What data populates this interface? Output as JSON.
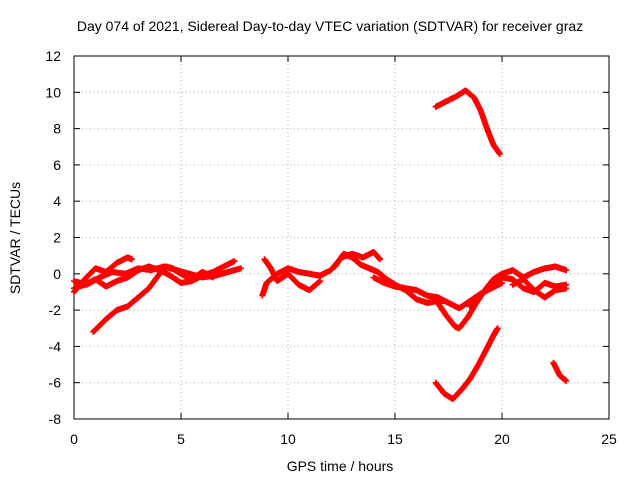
{
  "chart_data": {
    "type": "scatter",
    "title": "Day 074 of 2021, Sidereal Day-to-day VTEC variation (SDTVAR) for receiver graz",
    "xlabel": "GPS time / hours",
    "ylabel": "SDTVAR / TECUs",
    "xlim": [
      0,
      25
    ],
    "ylim": [
      -8,
      12
    ],
    "xticks": [
      0,
      5,
      10,
      15,
      20,
      25
    ],
    "yticks": [
      -8,
      -6,
      -4,
      -2,
      0,
      2,
      4,
      6,
      8,
      10,
      12
    ],
    "grid": true,
    "marker": "+",
    "series_color": "#ff0000",
    "series": [
      {
        "name": "trace-1",
        "points": [
          [
            0.0,
            -1.0
          ],
          [
            0.5,
            -0.3
          ],
          [
            1.0,
            0.3
          ],
          [
            1.5,
            0.1
          ],
          [
            2.0,
            0.6
          ],
          [
            2.5,
            0.9
          ],
          [
            2.7,
            0.8
          ]
        ]
      },
      {
        "name": "trace-2",
        "points": [
          [
            0.0,
            -0.8
          ],
          [
            0.5,
            -0.6
          ],
          [
            1.0,
            -0.3
          ],
          [
            1.5,
            -0.7
          ],
          [
            2.0,
            -0.4
          ],
          [
            2.5,
            -0.2
          ],
          [
            3.0,
            0.2
          ],
          [
            3.5,
            0.4
          ],
          [
            4.0,
            0.2
          ],
          [
            4.5,
            -0.1
          ],
          [
            5.0,
            -0.5
          ],
          [
            5.5,
            -0.4
          ],
          [
            6.0,
            -0.1
          ],
          [
            6.5,
            0.1
          ],
          [
            7.0,
            0.4
          ],
          [
            7.5,
            0.7
          ]
        ]
      },
      {
        "name": "trace-3",
        "points": [
          [
            0.9,
            -3.2
          ],
          [
            1.5,
            -2.5
          ],
          [
            2.0,
            -2.0
          ],
          [
            2.5,
            -1.8
          ],
          [
            3.0,
            -1.3
          ],
          [
            3.5,
            -0.8
          ],
          [
            4.0,
            0.0
          ],
          [
            4.3,
            0.4
          ],
          [
            4.6,
            0.3
          ],
          [
            5.0,
            0.0
          ],
          [
            5.5,
            -0.3
          ],
          [
            6.0,
            0.1
          ],
          [
            6.5,
            -0.2
          ]
        ]
      },
      {
        "name": "trace-4",
        "points": [
          [
            0.0,
            -0.4
          ],
          [
            0.6,
            -0.6
          ],
          [
            1.2,
            -0.2
          ],
          [
            1.8,
            0.1
          ],
          [
            2.4,
            0.0
          ],
          [
            3.0,
            0.3
          ],
          [
            3.6,
            0.2
          ],
          [
            4.2,
            0.4
          ],
          [
            4.8,
            0.2
          ],
          [
            5.4,
            0.0
          ],
          [
            6.0,
            -0.2
          ],
          [
            6.6,
            -0.1
          ],
          [
            7.2,
            0.1
          ],
          [
            7.8,
            0.3
          ]
        ]
      },
      {
        "name": "trace-5",
        "points": [
          [
            8.9,
            0.8
          ],
          [
            9.2,
            0.3
          ],
          [
            9.5,
            -0.4
          ],
          [
            10.0,
            0.0
          ],
          [
            10.5,
            -0.6
          ],
          [
            11.0,
            -0.9
          ],
          [
            11.5,
            -0.4
          ]
        ]
      },
      {
        "name": "trace-6",
        "points": [
          [
            8.8,
            -1.2
          ],
          [
            9.0,
            -0.5
          ],
          [
            9.5,
            0.0
          ],
          [
            10.0,
            0.3
          ],
          [
            10.5,
            0.1
          ],
          [
            11.0,
            0.0
          ],
          [
            11.5,
            -0.1
          ],
          [
            12.0,
            0.2
          ],
          [
            12.5,
            0.9
          ],
          [
            13.0,
            1.1
          ],
          [
            13.5,
            0.9
          ],
          [
            14.0,
            1.2
          ],
          [
            14.3,
            0.8
          ]
        ]
      },
      {
        "name": "trace-7",
        "points": [
          [
            12.2,
            0.4
          ],
          [
            12.6,
            1.1
          ],
          [
            13.0,
            0.9
          ],
          [
            13.4,
            0.5
          ],
          [
            13.8,
            0.3
          ],
          [
            14.2,
            0.1
          ],
          [
            14.6,
            -0.3
          ],
          [
            15.0,
            -0.6
          ],
          [
            15.5,
            -0.9
          ],
          [
            16.0,
            -1.4
          ],
          [
            16.5,
            -1.6
          ],
          [
            17.0,
            -1.5
          ],
          [
            17.3,
            -1.5
          ]
        ]
      },
      {
        "name": "trace-8",
        "points": [
          [
            14.0,
            -0.2
          ],
          [
            14.5,
            -0.5
          ],
          [
            15.0,
            -0.7
          ],
          [
            15.5,
            -0.8
          ],
          [
            16.0,
            -0.9
          ],
          [
            16.5,
            -1.2
          ],
          [
            17.0,
            -1.3
          ],
          [
            17.5,
            -1.6
          ],
          [
            18.0,
            -1.9
          ],
          [
            18.5,
            -1.5
          ],
          [
            19.0,
            -1.1
          ],
          [
            19.5,
            -0.8
          ],
          [
            20.0,
            -0.5
          ]
        ]
      },
      {
        "name": "trace-9",
        "points": [
          [
            17.0,
            -1.6
          ],
          [
            17.4,
            -2.3
          ],
          [
            17.8,
            -2.9
          ],
          [
            18.0,
            -3.0
          ],
          [
            18.4,
            -2.4
          ],
          [
            18.8,
            -1.6
          ],
          [
            19.2,
            -0.9
          ],
          [
            19.6,
            -0.3
          ],
          [
            20.0,
            0.0
          ],
          [
            20.5,
            0.2
          ],
          [
            21.0,
            -0.2
          ],
          [
            21.5,
            0.1
          ],
          [
            22.0,
            0.3
          ],
          [
            22.5,
            0.4
          ],
          [
            23.0,
            0.2
          ]
        ]
      },
      {
        "name": "trace-10",
        "points": [
          [
            18.5,
            -1.8
          ],
          [
            19.0,
            -1.2
          ],
          [
            19.5,
            -0.6
          ],
          [
            20.0,
            -0.2
          ],
          [
            20.5,
            -0.3
          ],
          [
            21.0,
            -0.8
          ],
          [
            21.5,
            -1.0
          ],
          [
            22.0,
            -0.5
          ],
          [
            22.5,
            -0.7
          ],
          [
            23.0,
            -0.6
          ]
        ]
      },
      {
        "name": "trace-11",
        "points": [
          [
            20.5,
            -0.6
          ],
          [
            21.0,
            -0.3
          ],
          [
            21.5,
            -0.9
          ],
          [
            22.0,
            -1.3
          ],
          [
            22.5,
            -0.9
          ],
          [
            23.0,
            -0.8
          ]
        ]
      },
      {
        "name": "trace-12",
        "points": [
          [
            16.9,
            9.2
          ],
          [
            17.4,
            9.5
          ],
          [
            17.9,
            9.8
          ],
          [
            18.3,
            10.1
          ],
          [
            18.7,
            9.7
          ],
          [
            19.0,
            9.0
          ],
          [
            19.3,
            8.0
          ],
          [
            19.6,
            7.1
          ],
          [
            19.9,
            6.6
          ]
        ]
      },
      {
        "name": "trace-13",
        "points": [
          [
            16.9,
            -6.0
          ],
          [
            17.3,
            -6.6
          ],
          [
            17.7,
            -6.9
          ],
          [
            18.1,
            -6.4
          ],
          [
            18.5,
            -5.8
          ],
          [
            18.9,
            -5.0
          ],
          [
            19.3,
            -4.1
          ],
          [
            19.6,
            -3.4
          ],
          [
            19.8,
            -3.0
          ]
        ]
      },
      {
        "name": "trace-14",
        "points": [
          [
            22.4,
            -4.9
          ],
          [
            22.7,
            -5.6
          ],
          [
            23.0,
            -5.9
          ]
        ]
      }
    ]
  }
}
